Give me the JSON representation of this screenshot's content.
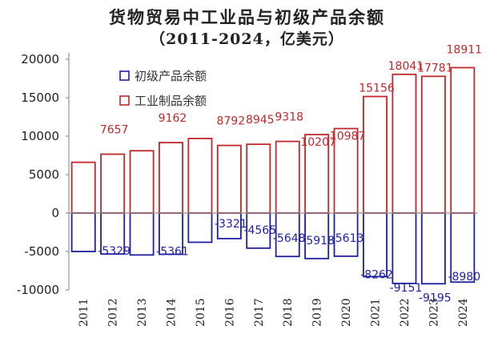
{
  "chart_data": {
    "type": "bar",
    "title": "货物贸易中工业品与初级产品余额",
    "subtitle": "（2011-2024，亿美元）",
    "categories": [
      "2011",
      "2012",
      "2013",
      "2014",
      "2015",
      "2016",
      "2017",
      "2018",
      "2019",
      "2020",
      "2021",
      "2022",
      "2023",
      "2024"
    ],
    "series": [
      {
        "name": "初级产品余额",
        "color": "#1f1fa0",
        "values": [
          -5000,
          -5329,
          -5450,
          -5361,
          -3800,
          -3321,
          -4565,
          -5648,
          -5918,
          -5613,
          -8262,
          -9151,
          -9195,
          -8980
        ],
        "data_labels": [
          "",
          "-5329",
          "",
          "-5361",
          "",
          "-3321",
          "-4565",
          "-5648",
          "-5918",
          "-5613",
          "-8262",
          "-9151",
          "-9195",
          "-8980"
        ]
      },
      {
        "name": "工业制品余额",
        "color": "#c0282c",
        "values": [
          6600,
          7657,
          8100,
          9162,
          9700,
          8792,
          8945,
          9318,
          10207,
          10987,
          15156,
          18041,
          17781,
          18911
        ],
        "data_labels": [
          "",
          "7657",
          "",
          "9162",
          "",
          "8792",
          "8945",
          "9318",
          "10207",
          "10987",
          "15156",
          "18041",
          "17781",
          "18911"
        ]
      }
    ],
    "ylim": [
      -10000,
      20000
    ],
    "yticks": [
      -10000,
      -5000,
      0,
      5000,
      10000,
      15000,
      20000
    ],
    "ytick_labels": [
      "-10000",
      "-5000",
      "0",
      "5000",
      "10000",
      "15000",
      "20000"
    ],
    "legend_position": "top-left",
    "grid": false
  }
}
